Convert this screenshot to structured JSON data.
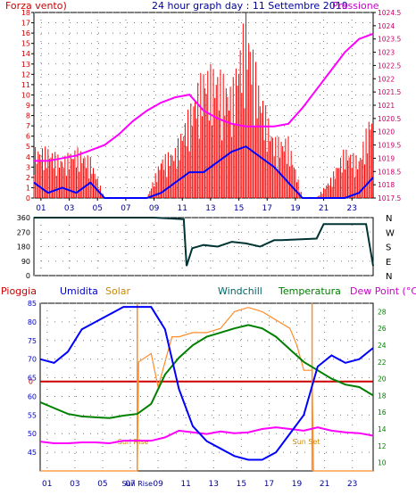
{
  "chart_data": [
    {
      "type": "line",
      "title": "24 hour graph day : 11 Settembre 2019",
      "left_axis_label": "Forza vento)",
      "right_axis_label": "Pressione",
      "x_ticks": [
        "01",
        "03",
        "05",
        "07",
        "09",
        "11",
        "13",
        "15",
        "17",
        "19",
        "21",
        "23"
      ],
      "x_range": [
        0,
        24
      ],
      "y_left_range": [
        0,
        18
      ],
      "y_left_ticks": [
        "0",
        "1",
        "2",
        "3",
        "4",
        "5",
        "6",
        "7",
        "8",
        "9",
        "10",
        "11",
        "12",
        "13",
        "14",
        "15",
        "16",
        "17",
        "18"
      ],
      "y_right_range": [
        1017.5,
        1024.5
      ],
      "y_right_ticks": [
        "1017.5",
        "1018",
        "1018.5",
        "1019",
        "1019.5",
        "1020",
        "1020.5",
        "1021",
        "1021.5",
        "1022",
        "1022.5",
        "1023",
        "1023.5",
        "1024",
        "1024.5"
      ],
      "grid": true,
      "colors": {
        "gust": "#ff0000",
        "wind": "#0000ff",
        "pressure": "#ff00ff",
        "axis_left": "#cc0000",
        "axis_right": "#cc0066",
        "title": "#000099"
      },
      "series": [
        {
          "key": "pressure",
          "x": [
            0,
            1,
            2,
            3,
            4,
            5,
            6,
            7,
            8,
            9,
            10,
            11,
            12,
            13,
            14,
            15,
            16,
            17,
            18,
            19,
            20,
            21,
            22,
            23,
            24
          ],
          "values": [
            1018.9,
            1018.9,
            1019.0,
            1019.1,
            1019.3,
            1019.5,
            1019.9,
            1020.4,
            1020.8,
            1021.1,
            1021.3,
            1021.4,
            1020.8,
            1020.5,
            1020.3,
            1020.2,
            1020.2,
            1020.2,
            1020.3,
            1020.9,
            1021.6,
            1022.3,
            1023.0,
            1023.5,
            1023.7
          ]
        },
        {
          "key": "wind",
          "x": [
            0,
            1,
            2,
            3,
            4,
            5,
            6,
            7,
            8,
            9,
            10,
            11,
            12,
            13,
            14,
            15,
            16,
            17,
            18,
            19,
            20,
            21,
            22,
            23,
            24
          ],
          "values": [
            1.5,
            0.5,
            1.0,
            0.5,
            1.5,
            0,
            0,
            0,
            0,
            0.5,
            1.5,
            2.5,
            2.5,
            3.5,
            4.5,
            5.0,
            4.0,
            3.0,
            1.5,
            0,
            0,
            0,
            0,
            0.5,
            2.0
          ]
        },
        {
          "key": "gust",
          "x": [
            0,
            1,
            2,
            3,
            4,
            5,
            6,
            7,
            8,
            9,
            10,
            11,
            12,
            13,
            14,
            15,
            16,
            17,
            18,
            19,
            20,
            21,
            22,
            23,
            24
          ],
          "values": [
            5.0,
            5.0,
            4.0,
            5.0,
            4.0,
            0,
            0,
            0,
            0,
            4.0,
            5.0,
            9.0,
            13.0,
            13.0,
            11.0,
            18.5,
            11.0,
            6.0,
            6.0,
            0,
            0,
            2.0,
            5.0,
            4.0,
            9.5
          ]
        }
      ]
    },
    {
      "type": "line",
      "right_axis_label": [
        "N",
        "W",
        "S",
        "E",
        "N"
      ],
      "y_ticks": [
        "0",
        "90",
        "180",
        "270",
        "360"
      ],
      "y_range": [
        0,
        360
      ],
      "grid": true,
      "colors": {
        "direction": "#003333"
      },
      "series": [
        {
          "key": "direction",
          "x": [
            0,
            8.5,
            10.6,
            10.8,
            11.2,
            12,
            13,
            14,
            15,
            16,
            17,
            17.5,
            20,
            20.5,
            23.5,
            24
          ],
          "values": [
            360,
            360,
            350,
            60,
            170,
            190,
            180,
            210,
            200,
            180,
            220,
            220,
            230,
            320,
            320,
            60
          ]
        }
      ]
    },
    {
      "type": "line",
      "legend": [
        "Pioggia",
        "Umidita",
        "Solar",
        "Windchill",
        "Temperatura",
        "Dew Point (°C)"
      ],
      "x_ticks": [
        "01",
        "03",
        "05",
        "07",
        "Sun Rise",
        "09",
        "11",
        "13",
        "15",
        "17",
        "19",
        "21",
        "23"
      ],
      "x_range": [
        0,
        24
      ],
      "y_left_range": [
        40,
        85
      ],
      "y_left_ticks": [
        "45",
        "50",
        "55",
        "60",
        "65",
        "70",
        "75",
        "80",
        "85"
      ],
      "y_right_range": [
        9,
        29
      ],
      "y_right_ticks": [
        "10",
        "12",
        "14",
        "16",
        "18",
        "20",
        "22",
        "24",
        "26",
        "28"
      ],
      "rain_zero_label": "0",
      "sun_rise_label": "Sun Rise",
      "sun_set_label": "Sun Set",
      "sun_rise_hour": 7.0,
      "sun_set_hour": 19.6,
      "grid": true,
      "colors": {
        "humidity": "#0000ff",
        "solar": "#ff8c29",
        "temperature": "#008000",
        "dewpoint": "#ff00ff",
        "rain": "#cc0000",
        "windchill": "#006666"
      },
      "series": [
        {
          "key": "humidity",
          "axis": "left",
          "x": [
            0,
            1,
            2,
            3,
            4,
            5,
            6,
            7,
            8,
            9,
            10,
            11,
            12,
            13,
            14,
            15,
            16,
            17,
            18,
            19,
            20,
            21,
            22,
            23,
            24
          ],
          "values": [
            70,
            69,
            72,
            78,
            80,
            82,
            84,
            84,
            84,
            78,
            62,
            52,
            48,
            46,
            44,
            43,
            43,
            45,
            50,
            55,
            68,
            71,
            69,
            70,
            73
          ]
        },
        {
          "key": "temperature",
          "axis": "right",
          "x": [
            0,
            1,
            2,
            3,
            4,
            5,
            6,
            7,
            8,
            9,
            10,
            11,
            12,
            13,
            14,
            15,
            16,
            17,
            18,
            19,
            20,
            21,
            22,
            23,
            24
          ],
          "values": [
            17.2,
            16.5,
            15.8,
            15.5,
            15.4,
            15.3,
            15.6,
            15.8,
            17.0,
            20.5,
            22.5,
            24.0,
            25.0,
            25.5,
            26.0,
            26.4,
            26.0,
            25.0,
            23.5,
            22.0,
            21.0,
            20.0,
            19.3,
            19.0,
            18.0
          ]
        },
        {
          "key": "dewpoint",
          "axis": "right",
          "x": [
            0,
            1,
            2,
            3,
            4,
            5,
            6,
            7,
            8,
            9,
            10,
            11,
            12,
            13,
            14,
            15,
            16,
            17,
            18,
            19,
            20,
            21,
            22,
            23,
            24
          ],
          "values": [
            12.5,
            12.3,
            12.3,
            12.4,
            12.4,
            12.3,
            12.6,
            12.6,
            12.6,
            13.0,
            13.8,
            13.6,
            13.4,
            13.7,
            13.5,
            13.6,
            14.0,
            14.2,
            14.0,
            13.8,
            14.2,
            13.8,
            13.6,
            13.5,
            13.2
          ]
        },
        {
          "key": "solar",
          "axis": "right",
          "x": [
            0,
            7.0,
            7.1,
            8,
            8.5,
            9,
            9.5,
            10,
            11,
            12,
            13,
            14,
            15,
            16,
            17,
            18,
            18.5,
            19,
            19.6,
            19.7,
            24
          ],
          "values": [
            9,
            9,
            22,
            23,
            19,
            22,
            25,
            25,
            25.5,
            25.5,
            26,
            28,
            28.5,
            28,
            27,
            26,
            24,
            21,
            21,
            9,
            9
          ]
        }
      ]
    }
  ]
}
